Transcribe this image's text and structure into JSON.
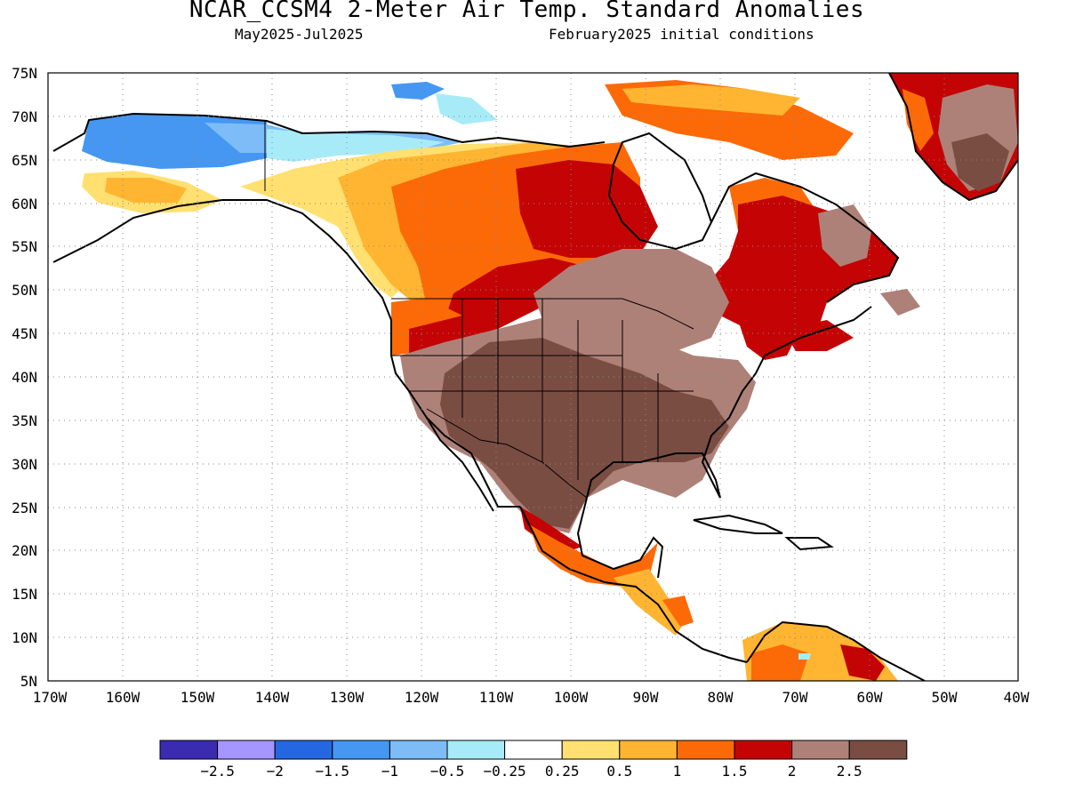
{
  "header": {
    "title": "NCAR_CCSM4 2-Meter Air Temp. Standard Anomalies",
    "period": "May2025-Jul2025",
    "init": "February2025 initial conditions"
  },
  "map": {
    "region": "North America",
    "projection": "cylindrical equidistant",
    "lat_range": [
      5,
      75
    ],
    "lon_range": [
      -170,
      -40
    ],
    "gridlines": "dotted",
    "lat_labels": [
      "75N",
      "70N",
      "65N",
      "60N",
      "55N",
      "50N",
      "45N",
      "40N",
      "35N",
      "30N",
      "25N",
      "20N",
      "15N",
      "10N",
      "5N"
    ],
    "lon_labels": [
      "170W",
      "160W",
      "150W",
      "140W",
      "130W",
      "120W",
      "110W",
      "100W",
      "90W",
      "80W",
      "70W",
      "60W",
      "50W",
      "40W"
    ]
  },
  "colorbar": {
    "colors": [
      "#3a2bb0",
      "#a596ff",
      "#2567e0",
      "#4597f2",
      "#7dbcf7",
      "#a8ebf8",
      "#ffffff",
      "#ffe070",
      "#ffb532",
      "#fc6a08",
      "#c40404",
      "#ae8178",
      "#7a4d43"
    ],
    "labels": [
      "-2.5",
      "-2",
      "-1.5",
      "-1",
      "-0.5",
      "-0.25",
      "0.25",
      "0.5",
      "1",
      "1.5",
      "2",
      "2.5"
    ]
  },
  "palette": {
    "brown_dark": "#7a4d43",
    "brown_light": "#ae8178",
    "red": "#c40404",
    "orange": "#fc6a08",
    "light_orange": "#ffb532",
    "yellow": "#ffe070",
    "pale_cyan": "#a8ebf8",
    "light_blue": "#7dbcf7",
    "blue": "#4597f2"
  }
}
